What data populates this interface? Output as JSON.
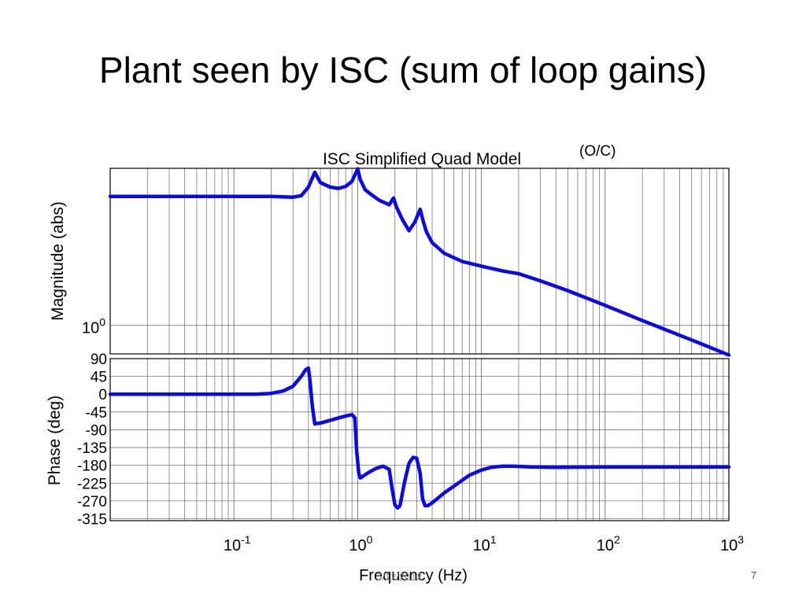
{
  "slide": {
    "title": "Plant seen by ISC (sum of loop gains)",
    "annotation": "(O/C)",
    "page_number": "7",
    "footer_date": "5/12/2012"
  },
  "colors": {
    "trace": "#0a0ae6",
    "grid": "#7a7a7a",
    "axes": "#000000"
  },
  "chart_data": [
    {
      "type": "line",
      "title": "ISC Simplified Quad Model",
      "xlabel": "",
      "ylabel": "Magnitude (abs)",
      "xscale": "log",
      "yscale": "log",
      "xlim": [
        0.01,
        1000
      ],
      "grid": true,
      "y_tick_labels": [
        {
          "base": "10",
          "exp": "0"
        }
      ],
      "series": [
        {
          "x": [
            0.01,
            0.02,
            0.05,
            0.1,
            0.2,
            0.3,
            0.35,
            0.4,
            0.45,
            0.5,
            0.6,
            0.7,
            0.8,
            0.9,
            0.95,
            1.0,
            1.05,
            1.15,
            1.3,
            1.5,
            1.8,
            1.95,
            2.05,
            2.3,
            2.6,
            2.9,
            3.2,
            3.4,
            3.6,
            4.0,
            5.0,
            7.0,
            10,
            15,
            20,
            30,
            50,
            100,
            200,
            500,
            1000
          ],
          "y": [
            8.0,
            8.0,
            8.0,
            8.0,
            8.0,
            7.9,
            8.1,
            9.3,
            11.8,
            10.0,
            9.3,
            9.1,
            9.4,
            10.2,
            11.3,
            12.5,
            10.5,
            8.9,
            8.2,
            7.5,
            7.0,
            7.8,
            6.8,
            5.5,
            4.6,
            5.3,
            6.5,
            5.3,
            4.5,
            3.8,
            3.2,
            2.8,
            2.6,
            2.4,
            2.3,
            2.05,
            1.75,
            1.38,
            1.08,
            0.79,
            0.62
          ]
        }
      ]
    },
    {
      "type": "line",
      "title": "",
      "xlabel": "Frequency (Hz)",
      "ylabel": "Phase (deg)",
      "xscale": "log",
      "xlim": [
        0.01,
        1000
      ],
      "ylim": [
        -320,
        90
      ],
      "grid": true,
      "y_ticks": [
        90,
        45,
        0,
        -45,
        -90,
        -135,
        -180,
        -225,
        -270,
        -315
      ],
      "y_tick_labels": [
        "90",
        "45",
        "0",
        "-45",
        "-90",
        "-135",
        "-180",
        "-225",
        "-270",
        "-315"
      ],
      "x_ticks": [
        0.1,
        1,
        10,
        100,
        1000
      ],
      "x_tick_labels": [
        {
          "base": "10",
          "exp": "-1"
        },
        {
          "base": "10",
          "exp": "0"
        },
        {
          "base": "10",
          "exp": "1"
        },
        {
          "base": "10",
          "exp": "2"
        },
        {
          "base": "10",
          "exp": "3"
        }
      ],
      "series": [
        {
          "x": [
            0.01,
            0.02,
            0.05,
            0.1,
            0.15,
            0.2,
            0.25,
            0.3,
            0.35,
            0.38,
            0.4,
            0.41,
            0.43,
            0.45,
            0.5,
            0.6,
            0.7,
            0.8,
            0.9,
            0.95,
            0.98,
            1.02,
            1.05,
            1.1,
            1.2,
            1.4,
            1.6,
            1.8,
            1.9,
            2.0,
            2.1,
            2.2,
            2.4,
            2.6,
            2.8,
            3.0,
            3.2,
            3.35,
            3.5,
            3.7,
            4.0,
            5.0,
            6.5,
            8.0,
            10,
            12,
            15,
            18,
            25,
            40,
            100,
            1000
          ],
          "y": [
            0,
            0,
            0,
            0,
            0,
            2,
            8,
            20,
            45,
            62,
            66,
            40,
            -30,
            -75,
            -73,
            -66,
            -60,
            -55,
            -52,
            -60,
            -140,
            -200,
            -212,
            -208,
            -200,
            -188,
            -182,
            -190,
            -240,
            -280,
            -288,
            -282,
            -220,
            -175,
            -160,
            -162,
            -200,
            -265,
            -282,
            -282,
            -275,
            -250,
            -225,
            -205,
            -192,
            -185,
            -182,
            -182,
            -184,
            -185,
            -184,
            -184
          ]
        }
      ]
    }
  ]
}
